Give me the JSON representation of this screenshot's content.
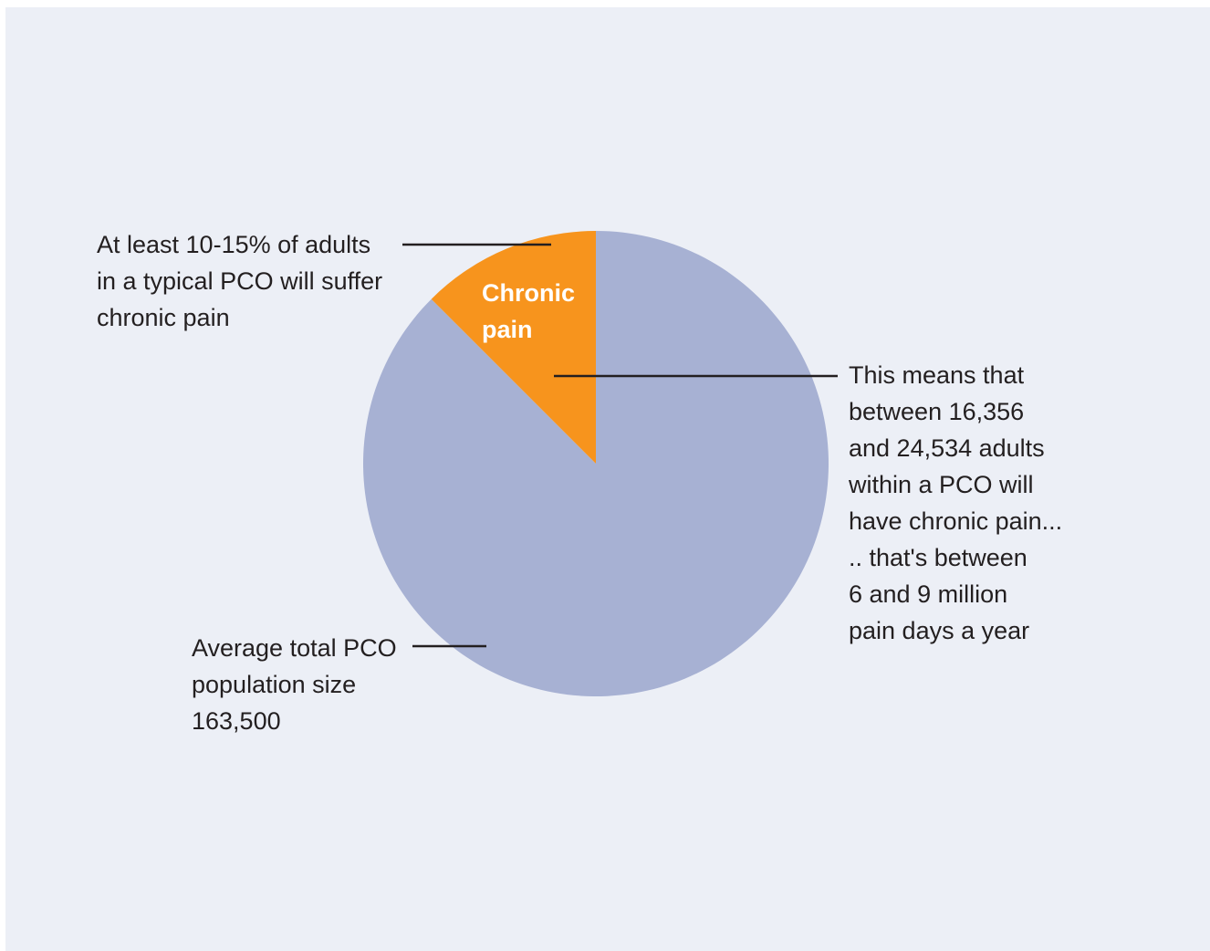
{
  "chart_data": {
    "type": "pie",
    "title": "",
    "slices": [
      {
        "label": "Chronic pain",
        "value": 12.5,
        "color": "#f7941d"
      },
      {
        "label": "",
        "value": 87.5,
        "color": "#a7b1d3"
      }
    ],
    "slice_label_lines": [
      "Chronic",
      "pain"
    ],
    "annotations": {
      "top_left": [
        "At least 10-15% of adults",
        "in a typical PCO will suffer",
        "chronic pain"
      ],
      "right": [
        "This means that",
        "between 16,356",
        "and 24,534 adults",
        "within a PCO will",
        "have chronic pain...",
        ".. that's between",
        "6 and 9 million",
        "pain days a year"
      ],
      "bottom_left": [
        "Average total PCO",
        "population size",
        "163,500"
      ]
    }
  },
  "colors": {
    "background": "#eceff6",
    "text": "#231f20",
    "leader_line": "#231f20"
  }
}
